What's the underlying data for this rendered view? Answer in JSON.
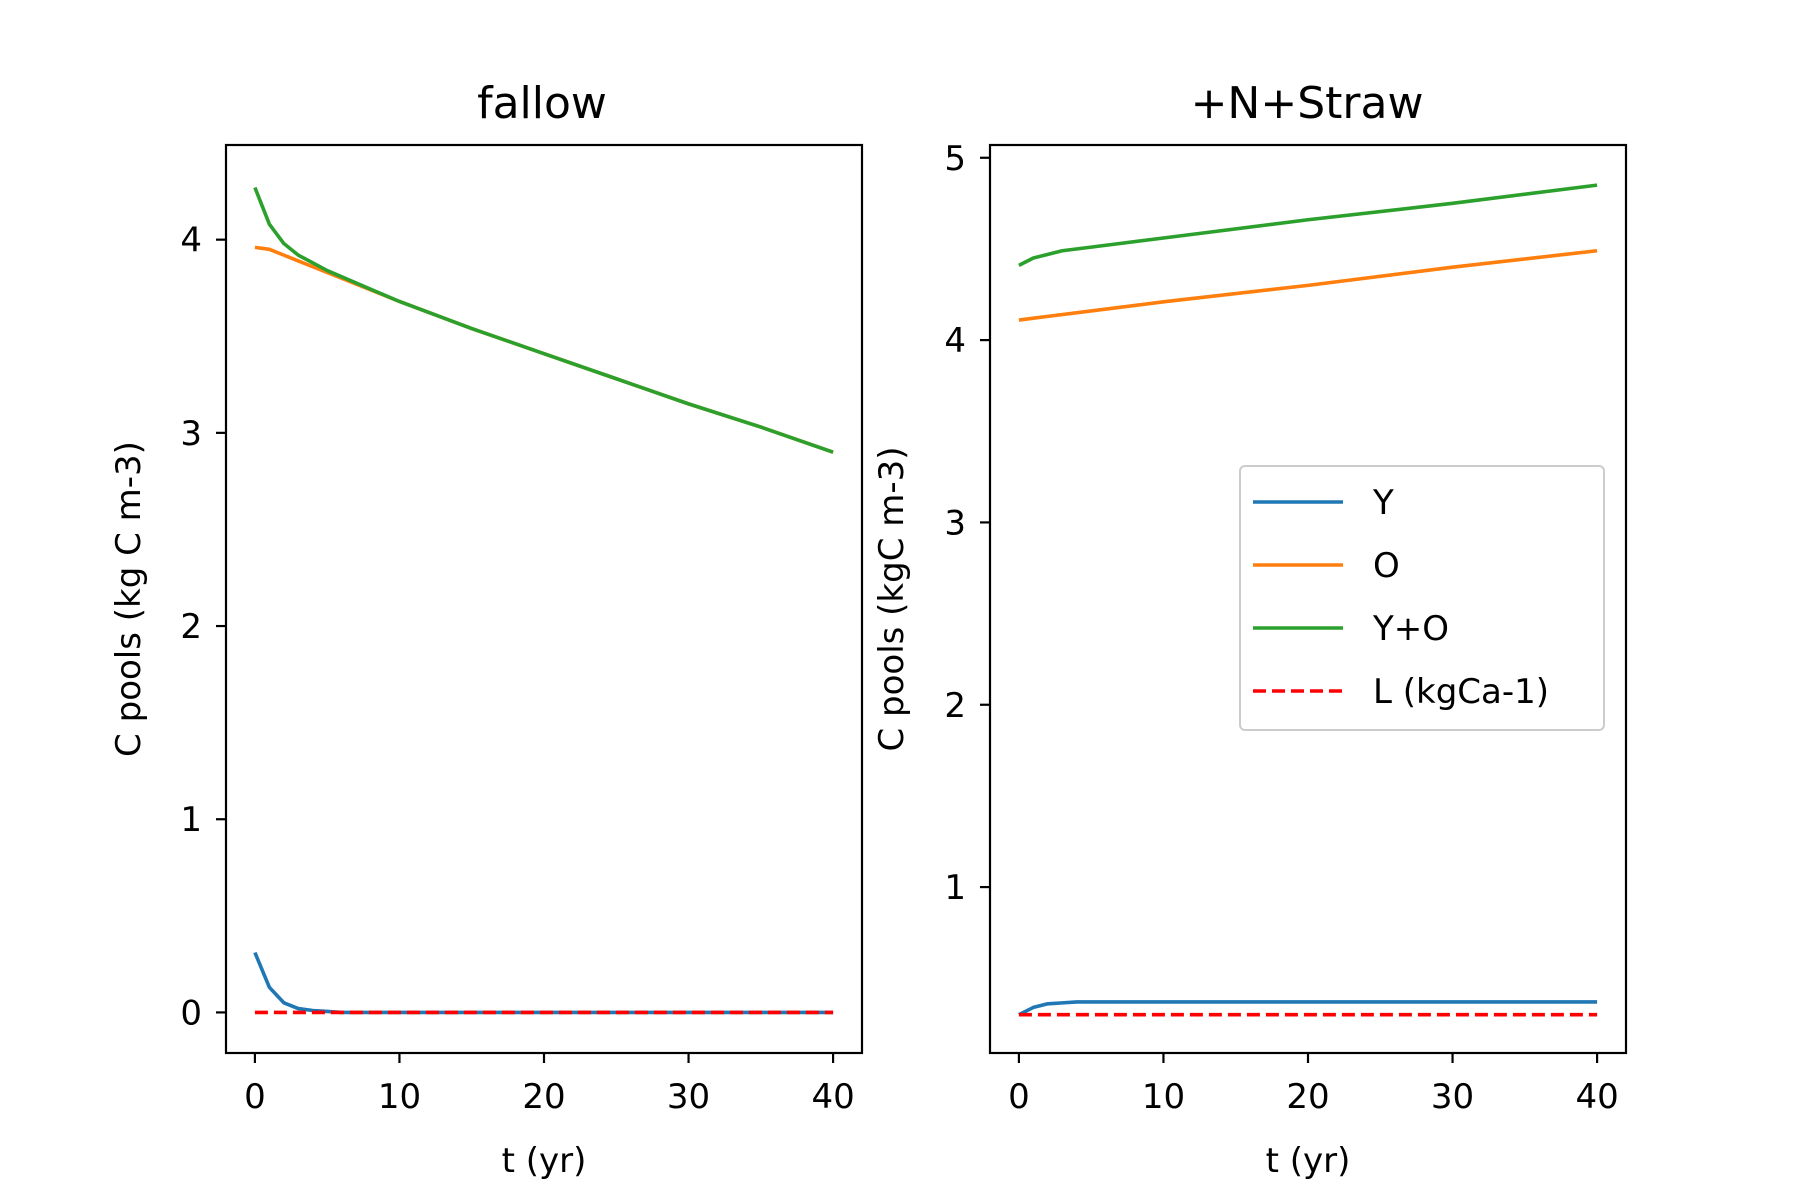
{
  "chart_data": [
    {
      "type": "line",
      "title": "fallow",
      "xlabel": "t (yr)",
      "ylabel": "C pools (kg C m-3)",
      "xlim": [
        -2,
        42
      ],
      "ylim": [
        -0.21,
        4.49
      ],
      "xticks": [
        0,
        10,
        20,
        30,
        40
      ],
      "yticks": [
        0,
        1,
        2,
        3,
        4
      ],
      "grid": false,
      "series": [
        {
          "name": "Y",
          "color": "#1f77b4",
          "dash": "solid",
          "x": [
            0,
            1,
            2,
            3,
            4,
            5,
            6,
            8,
            10,
            20,
            30,
            40
          ],
          "y": [
            0.31,
            0.13,
            0.05,
            0.02,
            0.01,
            0.005,
            0.0,
            0.0,
            0.0,
            0.0,
            0.0,
            0.0
          ]
        },
        {
          "name": "O",
          "color": "#ff7f0e",
          "dash": "solid",
          "x": [
            0,
            1,
            2,
            3,
            4,
            5,
            10,
            15,
            20,
            25,
            30,
            35,
            40
          ],
          "y": [
            3.96,
            3.95,
            3.92,
            3.89,
            3.86,
            3.83,
            3.68,
            3.54,
            3.41,
            3.28,
            3.15,
            3.03,
            2.9
          ]
        },
        {
          "name": "Y+O",
          "color": "#2ca02c",
          "dash": "solid",
          "x": [
            0,
            1,
            2,
            3,
            4,
            5,
            10,
            15,
            20,
            25,
            30,
            35,
            40
          ],
          "y": [
            4.27,
            4.08,
            3.98,
            3.92,
            3.88,
            3.84,
            3.68,
            3.54,
            3.41,
            3.28,
            3.15,
            3.03,
            2.9
          ]
        },
        {
          "name": "L (kgCa-1)",
          "color": "#ff0000",
          "dash": "dashed",
          "x": [
            0,
            40
          ],
          "y": [
            0.0,
            0.0
          ]
        }
      ]
    },
    {
      "type": "line",
      "title": "+N+Straw",
      "xlabel": "t (yr)",
      "ylabel": "C pools (kgC m-3)",
      "xlim": [
        -2,
        42
      ],
      "ylim": [
        0.09,
        5.07
      ],
      "xticks": [
        0,
        10,
        20,
        30,
        40
      ],
      "yticks": [
        1,
        2,
        3,
        4,
        5
      ],
      "grid": false,
      "legend": {
        "placement": "center-right",
        "entries": [
          "Y",
          "O",
          "Y+O",
          "L (kgCa-1)"
        ]
      },
      "series": [
        {
          "name": "Y",
          "color": "#1f77b4",
          "dash": "solid",
          "x": [
            0,
            0.5,
            1,
            2,
            3,
            4,
            5,
            10,
            20,
            30,
            40
          ],
          "y": [
            0.3,
            0.32,
            0.34,
            0.36,
            0.365,
            0.37,
            0.37,
            0.37,
            0.37,
            0.37,
            0.37
          ]
        },
        {
          "name": "O",
          "color": "#ff7f0e",
          "dash": "solid",
          "x": [
            0,
            1,
            2,
            5,
            10,
            20,
            30,
            40
          ],
          "y": [
            4.11,
            4.12,
            4.13,
            4.16,
            4.21,
            4.3,
            4.4,
            4.49
          ]
        },
        {
          "name": "Y+O",
          "color": "#2ca02c",
          "dash": "solid",
          "x": [
            0,
            1,
            2,
            3,
            5,
            10,
            20,
            30,
            40
          ],
          "y": [
            4.41,
            4.45,
            4.47,
            4.49,
            4.51,
            4.56,
            4.66,
            4.75,
            4.85
          ]
        },
        {
          "name": "L (kgCa-1)",
          "color": "#ff0000",
          "dash": "dashed",
          "x": [
            0,
            40
          ],
          "y": [
            0.3,
            0.3
          ]
        }
      ]
    }
  ]
}
